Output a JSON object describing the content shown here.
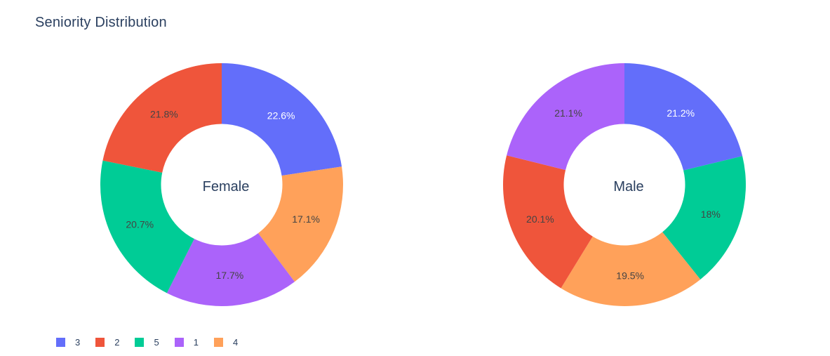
{
  "chart_data": {
    "type": "pie",
    "title": "Seniority Distribution",
    "hole": 0.5,
    "legend_placement": "bottom-left",
    "legend": [
      {
        "label": "3",
        "color": "#636efa"
      },
      {
        "label": "2",
        "color": "#ef553b"
      },
      {
        "label": "5",
        "color": "#00cc96"
      },
      {
        "label": "1",
        "color": "#ab63fa"
      },
      {
        "label": "4",
        "color": "#ffa15a"
      }
    ],
    "charts": [
      {
        "name": "Female",
        "slices": [
          {
            "label": "3",
            "value": 22.6,
            "text": "22.6%",
            "color": "#636efa",
            "text_color": "#ffffff"
          },
          {
            "label": "4",
            "value": 17.1,
            "text": "17.1%",
            "color": "#ffa15a",
            "text_color": "#444444"
          },
          {
            "label": "1",
            "value": 17.7,
            "text": "17.7%",
            "color": "#ab63fa",
            "text_color": "#444444"
          },
          {
            "label": "5",
            "value": 20.7,
            "text": "20.7%",
            "color": "#00cc96",
            "text_color": "#444444"
          },
          {
            "label": "2",
            "value": 21.8,
            "text": "21.8%",
            "color": "#ef553b",
            "text_color": "#444444"
          }
        ]
      },
      {
        "name": "Male",
        "slices": [
          {
            "label": "3",
            "value": 21.2,
            "text": "21.2%",
            "color": "#636efa",
            "text_color": "#ffffff"
          },
          {
            "label": "5",
            "value": 18.0,
            "text": "18%",
            "color": "#00cc96",
            "text_color": "#444444"
          },
          {
            "label": "4",
            "value": 19.5,
            "text": "19.5%",
            "color": "#ffa15a",
            "text_color": "#444444"
          },
          {
            "label": "2",
            "value": 20.1,
            "text": "20.1%",
            "color": "#ef553b",
            "text_color": "#444444"
          },
          {
            "label": "1",
            "value": 21.1,
            "text": "21.1%",
            "color": "#ab63fa",
            "text_color": "#444444"
          }
        ]
      }
    ]
  }
}
